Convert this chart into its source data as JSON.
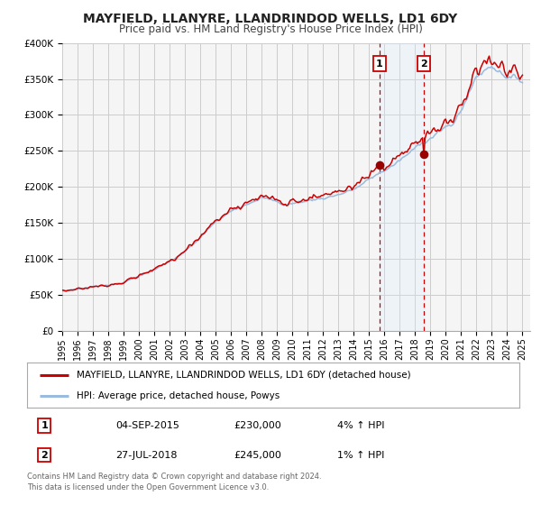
{
  "title": "MAYFIELD, LLANYRE, LLANDRINDOD WELLS, LD1 6DY",
  "subtitle": "Price paid vs. HM Land Registry's House Price Index (HPI)",
  "ylim": [
    0,
    400000
  ],
  "yticks": [
    0,
    50000,
    100000,
    150000,
    200000,
    250000,
    300000,
    350000,
    400000
  ],
  "ytick_labels": [
    "£0",
    "£50K",
    "£100K",
    "£150K",
    "£200K",
    "£250K",
    "£300K",
    "£350K",
    "£400K"
  ],
  "xlim_start": 1995.0,
  "xlim_end": 2025.5,
  "xticks": [
    1995,
    1996,
    1997,
    1998,
    1999,
    2000,
    2001,
    2002,
    2003,
    2004,
    2005,
    2006,
    2007,
    2008,
    2009,
    2010,
    2011,
    2012,
    2013,
    2014,
    2015,
    2016,
    2017,
    2018,
    2019,
    2020,
    2021,
    2022,
    2023,
    2024,
    2025
  ],
  "line1_color": "#cc0000",
  "line2_color": "#99bbdd",
  "line1_label": "MAYFIELD, LLANYRE, LLANDRINDOD WELLS, LD1 6DY (detached house)",
  "line2_label": "HPI: Average price, detached house, Powys",
  "marker_color": "#990000",
  "shading_color": "#ddeeff",
  "vline_color": "#cc0000",
  "event1_x": 2015.67,
  "event1_y": 230000,
  "event2_x": 2018.57,
  "event2_y": 245000,
  "table_row1": [
    "1",
    "04-SEP-2015",
    "£230,000",
    "4% ↑ HPI"
  ],
  "table_row2": [
    "2",
    "27-JUL-2018",
    "£245,000",
    "1% ↑ HPI"
  ],
  "footer_line1": "Contains HM Land Registry data © Crown copyright and database right 2024.",
  "footer_line2": "This data is licensed under the Open Government Licence v3.0.",
  "background_color": "#ffffff",
  "plot_bg_color": "#f5f5f5",
  "grid_color": "#cccccc"
}
